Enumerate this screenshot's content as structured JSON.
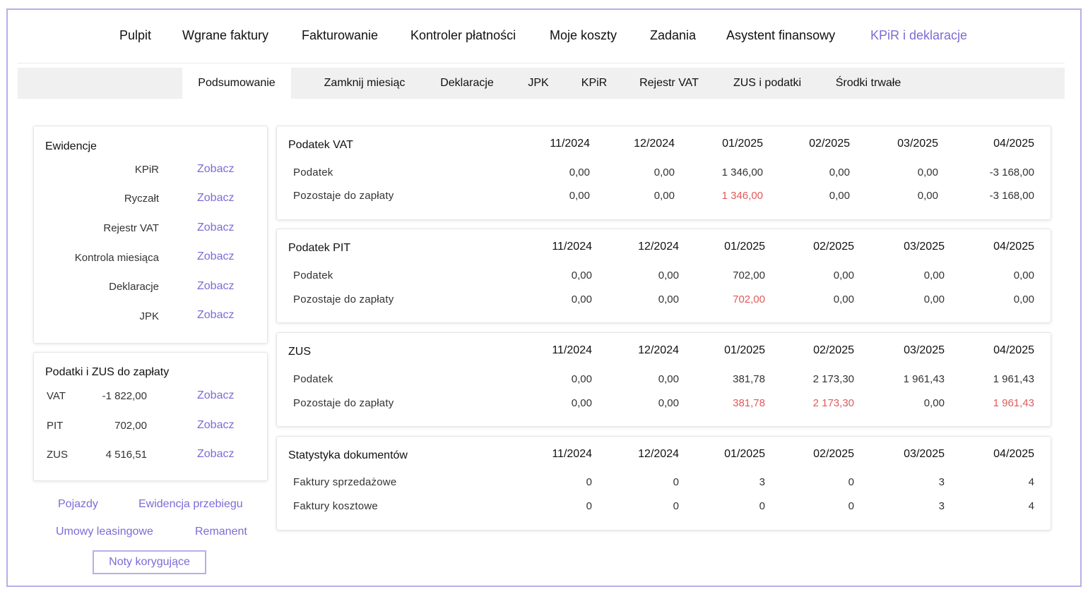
{
  "topnav": {
    "items": [
      "Pulpit",
      "Wgrane faktury",
      "Fakturowanie",
      "Kontroler płatności",
      "Moje koszty",
      "Zadania",
      "Asystent finansowy",
      "KPiR i deklaracje"
    ],
    "active_index": 7
  },
  "subnav": {
    "tabs": [
      "Podsumowanie",
      "Zamknij miesiąc",
      "Deklaracje",
      "JPK",
      "KPiR",
      "Rejestr VAT",
      "ZUS i podatki",
      "Środki trwałe"
    ],
    "active_index": 0
  },
  "ewidencje": {
    "title": "Ewidencje",
    "link_label": "Zobacz",
    "items": [
      "KPiR",
      "Ryczałt",
      "Rejestr VAT",
      "Kontrola miesiąca",
      "Deklaracje",
      "JPK"
    ]
  },
  "payments": {
    "title": "Podatki i ZUS do zapłaty",
    "link_label": "Zobacz",
    "rows": [
      {
        "label": "VAT",
        "value": "-1 822,00"
      },
      {
        "label": "PIT",
        "value": "702,00"
      },
      {
        "label": "ZUS",
        "value": "4 516,51"
      }
    ]
  },
  "bottom_links": {
    "pojazdy": "Pojazdy",
    "ewidencja": "Ewidencja przebiegu",
    "umowy": "Umowy leasingowe",
    "remanent": "Remanent",
    "noty": "Noty korygujące"
  },
  "months": [
    "11/2024",
    "12/2024",
    "01/2025",
    "02/2025",
    "03/2025",
    "04/2025"
  ],
  "tables": [
    {
      "title": "Podatek VAT",
      "rows": [
        {
          "label": "Podatek",
          "values": [
            "0,00",
            "0,00",
            "1 346,00",
            "0,00",
            "0,00",
            "-3 168,00"
          ],
          "red": [
            false,
            false,
            false,
            false,
            false,
            false
          ]
        },
        {
          "label": "Pozostaje do zapłaty",
          "values": [
            "0,00",
            "0,00",
            "1 346,00",
            "0,00",
            "0,00",
            "-3 168,00"
          ],
          "red": [
            false,
            false,
            true,
            false,
            false,
            false
          ]
        }
      ]
    },
    {
      "title": "Podatek PIT",
      "rows": [
        {
          "label": "Podatek",
          "values": [
            "0,00",
            "0,00",
            "702,00",
            "0,00",
            "0,00",
            "0,00"
          ],
          "red": [
            false,
            false,
            false,
            false,
            false,
            false
          ]
        },
        {
          "label": "Pozostaje do zapłaty",
          "values": [
            "0,00",
            "0,00",
            "702,00",
            "0,00",
            "0,00",
            "0,00"
          ],
          "red": [
            false,
            false,
            true,
            false,
            false,
            false
          ]
        }
      ]
    },
    {
      "title": "ZUS",
      "rows": [
        {
          "label": "Podatek",
          "values": [
            "0,00",
            "0,00",
            "381,78",
            "2 173,30",
            "1 961,43",
            "1 961,43"
          ],
          "red": [
            false,
            false,
            false,
            false,
            false,
            false
          ]
        },
        {
          "label": "Pozostaje do zapłaty",
          "values": [
            "0,00",
            "0,00",
            "381,78",
            "2 173,30",
            "0,00",
            "1 961,43"
          ],
          "red": [
            false,
            false,
            true,
            true,
            false,
            true
          ]
        }
      ]
    },
    {
      "title": "Statystyka dokumentów",
      "rows": [
        {
          "label": "Faktury sprzedażowe",
          "values": [
            "0",
            "0",
            "3",
            "0",
            "3",
            "4"
          ],
          "red": [
            false,
            false,
            false,
            false,
            false,
            false
          ]
        },
        {
          "label": "Faktury kosztowe",
          "values": [
            "0",
            "0",
            "0",
            "0",
            "3",
            "4"
          ],
          "red": [
            false,
            false,
            false,
            false,
            false,
            false
          ]
        }
      ]
    }
  ],
  "colors": {
    "accent": "#7d6bd6",
    "frame": "#b9aee8",
    "negative": "#e05a5a"
  }
}
